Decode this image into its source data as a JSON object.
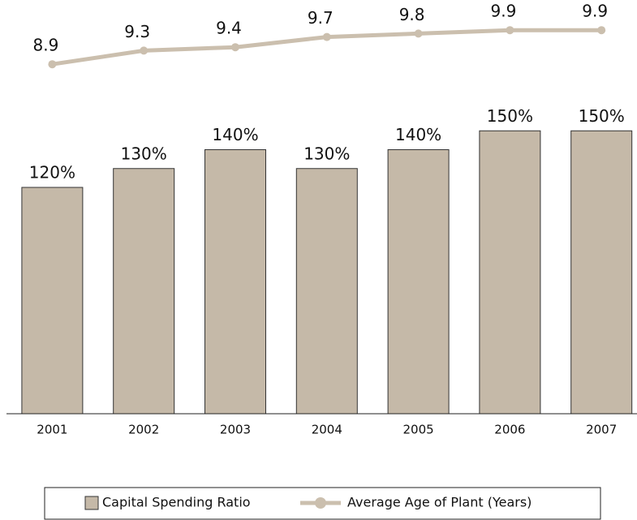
{
  "chart_data": {
    "type": "bar",
    "categories": [
      "2001",
      "2002",
      "2003",
      "2004",
      "2005",
      "2006",
      "2007"
    ],
    "series": [
      {
        "name": "Capital Spending Ratio",
        "type": "bar",
        "color": "#c5b9a8",
        "values": [
          120,
          130,
          140,
          130,
          140,
          150,
          150
        ],
        "value_labels": [
          "120%",
          "130%",
          "140%",
          "130%",
          "140%",
          "150%",
          "150%"
        ]
      },
      {
        "name": "Average Age of Plant (Years)",
        "type": "line",
        "axis": "y2",
        "color": "#cbbfae",
        "values": [
          8.9,
          9.3,
          9.4,
          9.7,
          9.8,
          9.9,
          9.9
        ]
      }
    ],
    "ylim": [
      0,
      200
    ],
    "y2lim": [
      8.5,
      10
    ]
  }
}
